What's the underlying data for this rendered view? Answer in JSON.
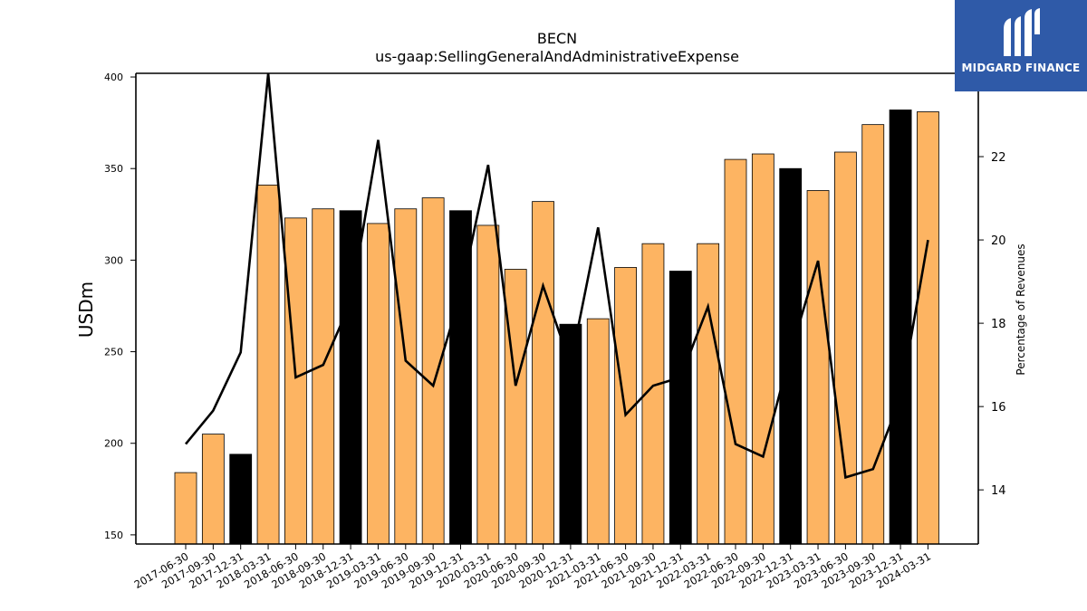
{
  "chart_data": {
    "type": "bar",
    "title": "BECN",
    "subtitle": "us-gaap:SellingGeneralAndAdministrativeExpense",
    "ylabel": "USDm",
    "y2label": "Percentage of Revenues",
    "ylim": [
      145,
      402
    ],
    "y2lim": [
      12.7,
      24.0
    ],
    "yticks": [
      150,
      200,
      250,
      300,
      350,
      400
    ],
    "y2ticks": [
      14,
      16,
      18,
      20,
      22
    ],
    "categories": [
      "2017-06-30",
      "2017-09-30",
      "2017-12-31",
      "2018-03-31",
      "2018-06-30",
      "2018-09-30",
      "2018-12-31",
      "2019-03-31",
      "2019-06-30",
      "2019-09-30",
      "2019-12-31",
      "2020-03-31",
      "2020-06-30",
      "2020-09-30",
      "2020-12-31",
      "2021-03-31",
      "2021-06-30",
      "2021-09-30",
      "2021-12-31",
      "2022-03-31",
      "2022-06-30",
      "2022-09-30",
      "2022-12-31",
      "2023-03-31",
      "2023-06-30",
      "2023-09-30",
      "2023-12-31",
      "2024-03-31"
    ],
    "series": [
      {
        "type": "bar",
        "values": [
          184,
          205,
          194,
          341,
          323,
          328,
          327,
          320,
          328,
          334,
          327,
          319,
          295,
          332,
          265,
          268,
          296,
          309,
          294,
          309,
          355,
          358,
          350,
          338,
          359,
          374,
          382,
          381
        ],
        "colors": [
          "#fdb462",
          "#fdb462",
          "#000000",
          "#fdb462",
          "#fdb462",
          "#fdb462",
          "#000000",
          "#fdb462",
          "#fdb462",
          "#fdb462",
          "#000000",
          "#fdb462",
          "#fdb462",
          "#fdb462",
          "#000000",
          "#fdb462",
          "#fdb462",
          "#fdb462",
          "#000000",
          "#fdb462",
          "#fdb462",
          "#fdb462",
          "#000000",
          "#fdb462",
          "#fdb462",
          "#fdb462",
          "#000000",
          "#fdb462"
        ]
      },
      {
        "type": "line",
        "axis": "right",
        "color": "#000000",
        "values": [
          15.1,
          15.9,
          17.3,
          24.0,
          16.7,
          17.0,
          18.5,
          22.4,
          17.1,
          16.5,
          18.7,
          21.8,
          16.5,
          18.9,
          17.0,
          20.3,
          15.8,
          16.5,
          16.7,
          18.4,
          15.1,
          14.8,
          17.3,
          19.5,
          14.3,
          14.5,
          16.2,
          20.0
        ]
      }
    ],
    "grid": false
  },
  "logo": {
    "text": "MIDGARD FINANCE"
  }
}
